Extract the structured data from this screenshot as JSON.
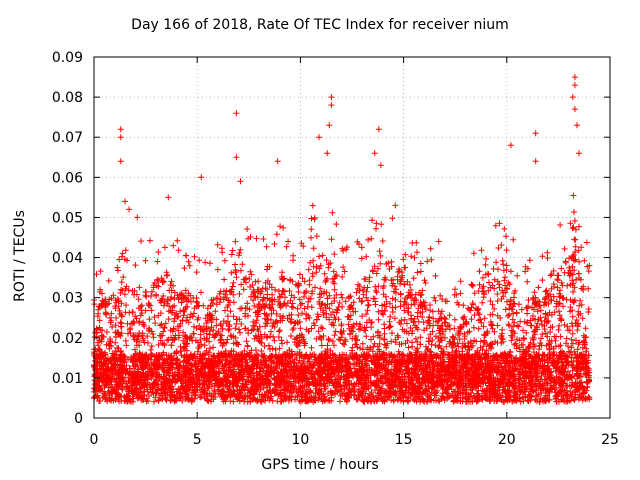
{
  "chart_data": {
    "type": "scatter",
    "title": "Day 166 of 2018, Rate Of TEC Index for receiver nium",
    "xlabel": "GPS time / hours",
    "ylabel": "ROTI / TECUs",
    "xlim": [
      0,
      25
    ],
    "ylim": [
      0,
      0.09
    ],
    "xticks": [
      0,
      5,
      10,
      15,
      20,
      25
    ],
    "yticks": [
      0,
      0.01,
      0.02,
      0.03,
      0.04,
      0.05,
      0.06,
      0.07,
      0.08,
      0.09
    ],
    "ytick_labels": [
      "0",
      "0.01",
      "0.02",
      "0.03",
      "0.04",
      "0.05",
      "0.06",
      "0.07",
      "0.08",
      "0.09"
    ],
    "grid": true,
    "marker": "+",
    "color": "#ff0000",
    "x_range_of_points": [
      0,
      24
    ],
    "points_sample": [
      {
        "x": 1.3,
        "y": 0.072
      },
      {
        "x": 1.3,
        "y": 0.07
      },
      {
        "x": 1.3,
        "y": 0.064
      },
      {
        "x": 1.5,
        "y": 0.054
      },
      {
        "x": 1.7,
        "y": 0.052
      },
      {
        "x": 2.1,
        "y": 0.05
      },
      {
        "x": 3.6,
        "y": 0.055
      },
      {
        "x": 5.2,
        "y": 0.06
      },
      {
        "x": 6.9,
        "y": 0.076
      },
      {
        "x": 6.9,
        "y": 0.065
      },
      {
        "x": 7.1,
        "y": 0.059
      },
      {
        "x": 8.9,
        "y": 0.064
      },
      {
        "x": 10.9,
        "y": 0.07
      },
      {
        "x": 11.3,
        "y": 0.066
      },
      {
        "x": 11.5,
        "y": 0.08
      },
      {
        "x": 11.5,
        "y": 0.078
      },
      {
        "x": 11.4,
        "y": 0.073
      },
      {
        "x": 13.8,
        "y": 0.072
      },
      {
        "x": 13.6,
        "y": 0.066
      },
      {
        "x": 13.9,
        "y": 0.063
      },
      {
        "x": 14.6,
        "y": 0.053
      },
      {
        "x": 16.7,
        "y": 0.044
      },
      {
        "x": 20.2,
        "y": 0.068
      },
      {
        "x": 21.4,
        "y": 0.071
      },
      {
        "x": 21.4,
        "y": 0.064
      },
      {
        "x": 23.3,
        "y": 0.085
      },
      {
        "x": 23.3,
        "y": 0.083
      },
      {
        "x": 23.2,
        "y": 0.08
      },
      {
        "x": 23.3,
        "y": 0.077
      },
      {
        "x": 23.4,
        "y": 0.073
      },
      {
        "x": 23.5,
        "y": 0.066
      },
      {
        "x": 0.2,
        "y": 0.026
      },
      {
        "x": 0.3,
        "y": 0.032
      },
      {
        "x": 24.0,
        "y": 0.038
      },
      {
        "x": 24.0,
        "y": 0.005
      }
    ]
  }
}
